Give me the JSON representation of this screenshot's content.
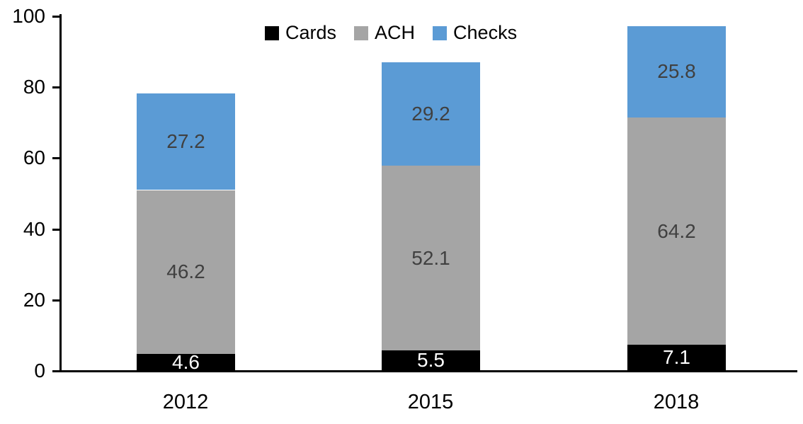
{
  "chart_data": {
    "type": "bar",
    "stacked": true,
    "title": "",
    "categories": [
      "2012",
      "2015",
      "2018"
    ],
    "series": [
      {
        "name": "Cards",
        "color": "#000000",
        "label_color": "#ffffff",
        "values": [
          4.6,
          5.5,
          7.1
        ]
      },
      {
        "name": "ACH",
        "color": "#A5A5A5",
        "label_color": "#404040",
        "values": [
          46.2,
          52.1,
          64.2
        ]
      },
      {
        "name": "Checks",
        "color": "#5B9BD5",
        "label_color": "#404040",
        "values": [
          27.2,
          29.2,
          25.8
        ]
      }
    ],
    "totals": [
      78.0,
      86.8,
      97.1
    ],
    "y_ticks": [
      "0",
      "20",
      "40",
      "60",
      "80",
      "100"
    ],
    "ylim": [
      0,
      100
    ],
    "grid": false,
    "legend_position": "top",
    "axis_color": "#000000",
    "background_color": "#ffffff"
  }
}
